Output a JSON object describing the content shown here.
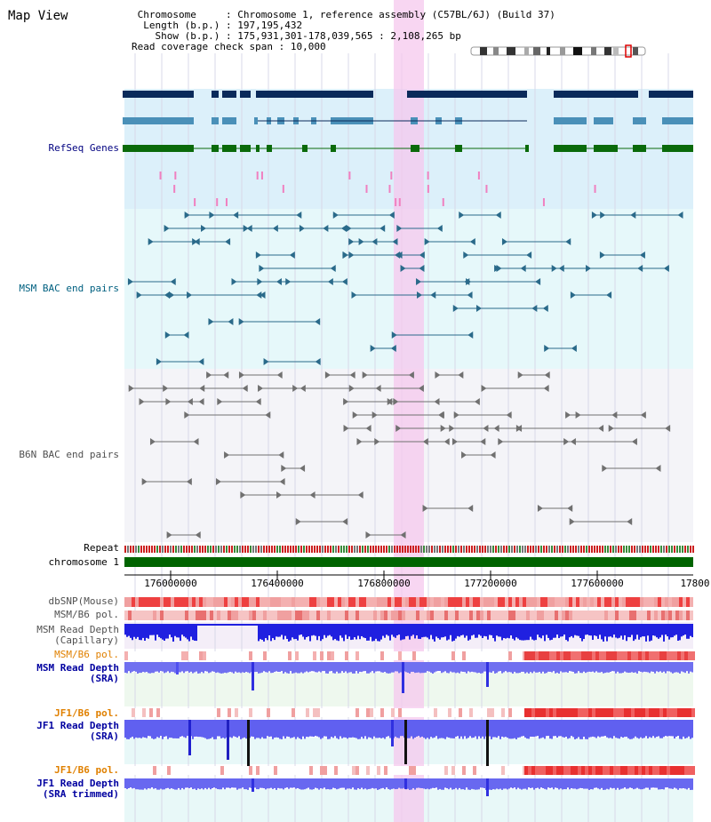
{
  "view_title": "Map View",
  "info": {
    "chromosome_label": "Chromosome",
    "chromosome_value": "Chromosome 1, reference assembly (C57BL/6J) (Build 37)",
    "length_label": "Length (b.p.)",
    "length_value": "197,195,432",
    "show_label": "Show (b.p.)",
    "show_value": "175,931,301-178,039,565 : 2,108,265 bp",
    "coverage_label": "Read coverage check span",
    "coverage_value": "10,000"
  },
  "tracks": {
    "refseq": "RefSeq Genes",
    "msm_bac": "MSM BAC end pairs",
    "b6n_bac": "B6N BAC end pairs",
    "repeat": "Repeat",
    "chromosome": "chromosome 1",
    "dbsnp": "dbSNP(Mouse)",
    "msm_b6_pol": "MSM/B6 pol.",
    "msm_depth_cap_1": "MSM Read Depth",
    "msm_depth_cap_2": "(Capillary)",
    "msm_b6_pol_2": "MSM/B6 pol.",
    "msm_depth_sra_1": "MSM Read Depth",
    "msm_depth_sra_2": "(SRA)",
    "jf1_b6_pol": "JF1/B6 pol.",
    "jf1_depth_sra_1": "JF1 Read Depth",
    "jf1_depth_sra_2": "(SRA)",
    "jf1_b6_pol_2": "JF1/B6 pol.",
    "jf1_depth_trim_1": "JF1 Read Depth",
    "jf1_depth_trim_2": "(SRA trimmed)"
  },
  "axis": {
    "ticks": [
      "176000000",
      "176400000",
      "176800000",
      "177200000",
      "177600000",
      "17800"
    ]
  },
  "colors": {
    "refseq_label": "#000080",
    "msm_label": "#006080",
    "b6n_label": "#505050",
    "pol_label": "#e08000",
    "depth_label": "#0000a0",
    "highlight": "#f6c8ee"
  }
}
